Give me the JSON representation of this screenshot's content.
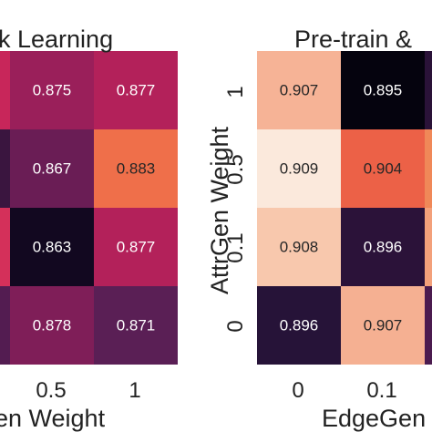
{
  "chart_data": [
    {
      "type": "heatmap",
      "title": "k Learning",
      "xlabel": "en Weight",
      "ylabel": "",
      "x_ticks": [
        "0.5",
        "1"
      ],
      "y_ticks": [],
      "columns": [
        {
          "values": [
            0.875,
            0.867,
            0.863,
            0.878
          ],
          "labels": [
            "0.875",
            "0.867",
            "0.863",
            "0.878"
          ],
          "colors": [
            "#9a1f5a",
            "#6a1d55",
            "#120820",
            "#7f1e58"
          ]
        },
        {
          "values": [
            0.877,
            0.883,
            0.877,
            0.871
          ],
          "labels": [
            "0.877",
            "0.883",
            "0.877",
            "0.871"
          ],
          "colors": [
            "#b3215a",
            "#ef6f4a",
            "#b3215a",
            "#5a1f55"
          ]
        }
      ],
      "partial_left_colors": [
        "#c8265a",
        "#3a153f",
        "#d4305a",
        "#531c51"
      ]
    },
    {
      "type": "heatmap",
      "title": "Pre-train &",
      "xlabel": "EdgeGen",
      "ylabel": "AttrGen Weight",
      "x_ticks": [
        "0",
        "0.1"
      ],
      "y_ticks": [
        "1",
        "0.5",
        "0.1",
        "0"
      ],
      "columns": [
        {
          "values": [
            0.907,
            0.909,
            0.908,
            0.896
          ],
          "labels": [
            "0.907",
            "0.909",
            "0.908",
            "0.896"
          ],
          "colors": [
            "#f6b396",
            "#fbe9dc",
            "#f8c8ad",
            "#261338"
          ]
        },
        {
          "values": [
            0.895,
            0.904,
            0.896,
            0.907
          ],
          "labels": [
            "0.895",
            "0.904",
            "0.896",
            "0.907"
          ],
          "colors": [
            "#05030e",
            "#ec6147",
            "#2b1239",
            "#f5b092"
          ]
        }
      ],
      "partial_right_colors": [
        "#2a1238",
        "#f08858",
        "#f3a07a",
        "#4b1b4f"
      ]
    }
  ]
}
